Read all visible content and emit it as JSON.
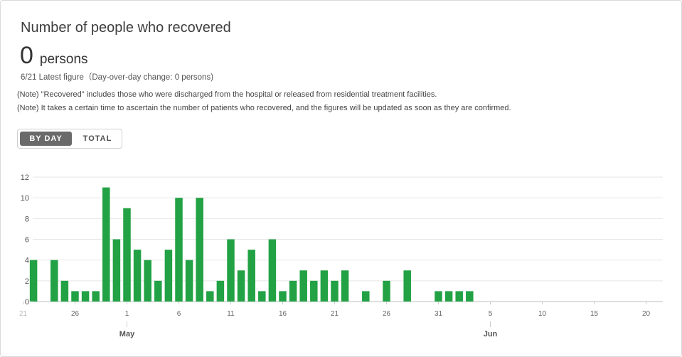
{
  "header": {
    "title": "Number of people who recovered",
    "value": "0",
    "unit": "persons",
    "latest": "6/21 Latest figure（Day-over-day change: 0 persons)"
  },
  "notes": [
    "(Note) \"Recovered\" includes those who were discharged from the hospital or released from residential treatment facilities.",
    "(Note) It takes a certain time to ascertain the number of patients who recovered, and the figures will be updated as soon as they are confirmed."
  ],
  "toggle": {
    "by_day": "BY DAY",
    "total": "TOTAL",
    "selected": "by_day"
  },
  "chart_data": {
    "type": "bar",
    "series_color": "#22a244",
    "ylim": [
      0,
      12
    ],
    "yticks": [
      0,
      2,
      4,
      6,
      8,
      10,
      12
    ],
    "grid": true,
    "x_start_day": 21,
    "x_tick_labels": [
      "21",
      "26",
      "1",
      "6",
      "11",
      "16",
      "21",
      "26",
      "31",
      "5",
      "10",
      "15",
      "20"
    ],
    "month_labels": [
      {
        "label": "May",
        "after_tick": 2
      },
      {
        "label": "Jun",
        "after_tick": 9
      }
    ],
    "categories": [
      "4/21",
      "4/22",
      "4/23",
      "4/24",
      "4/25",
      "4/26",
      "4/27",
      "4/28",
      "4/29",
      "4/30",
      "5/1",
      "5/2",
      "5/3",
      "5/4",
      "5/5",
      "5/6",
      "5/7",
      "5/8",
      "5/9",
      "5/10",
      "5/11",
      "5/12",
      "5/13",
      "5/14",
      "5/15",
      "5/16",
      "5/17",
      "5/18",
      "5/19",
      "5/20",
      "5/21",
      "5/22",
      "5/23",
      "5/24",
      "5/25",
      "5/26",
      "5/27",
      "5/28",
      "5/29",
      "5/30",
      "5/31",
      "6/1",
      "6/2",
      "6/3",
      "6/4",
      "6/5",
      "6/6",
      "6/7",
      "6/8",
      "6/9",
      "6/10",
      "6/11",
      "6/12",
      "6/13",
      "6/14",
      "6/15",
      "6/16",
      "6/17",
      "6/18",
      "6/19",
      "6/20",
      "6/21"
    ],
    "values": [
      0,
      4,
      0,
      4,
      2,
      1,
      1,
      1,
      11,
      6,
      9,
      5,
      4,
      2,
      5,
      10,
      4,
      10,
      1,
      2,
      6,
      3,
      5,
      1,
      6,
      1,
      2,
      3,
      2,
      3,
      2,
      3,
      0,
      1,
      0,
      2,
      0,
      3,
      0,
      0,
      1,
      1,
      1,
      1,
      0,
      0,
      0,
      0,
      0,
      0,
      0,
      0,
      0,
      0,
      0,
      0,
      0,
      0,
      0,
      0,
      0,
      0
    ]
  }
}
